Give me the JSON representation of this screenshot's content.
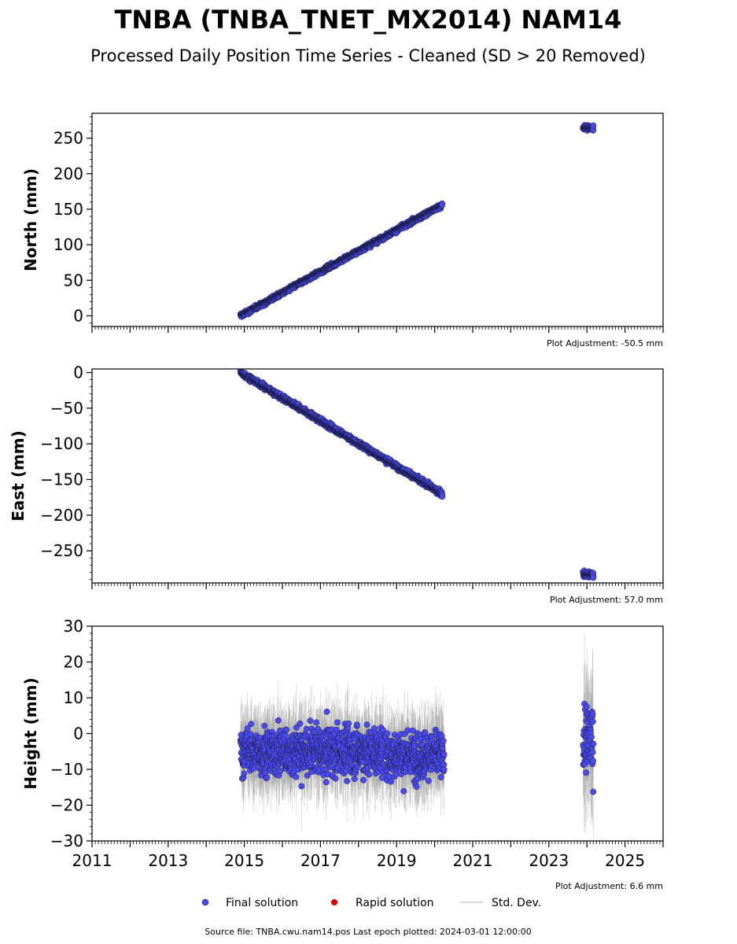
{
  "title": "TNBA (TNBA_TNET_MX2014) NAM14",
  "subtitle": "Processed Daily Position Time Series - Cleaned (SD > 20 Removed)",
  "footer": "Source file: TNBA.cwu.nam14.pos  Last epoch plotted: 2024-03-01 12:00:00",
  "legend": [
    {
      "label": "Final solution",
      "marker": "circle",
      "color": "#4a4af0"
    },
    {
      "label": "Rapid solution",
      "marker": "circle",
      "color": "#e00000"
    },
    {
      "label": "Std. Dev.",
      "marker": "line",
      "color": "#cccccc"
    }
  ],
  "colors": {
    "final": "#4a4af0",
    "final_edge": "#1a1a40",
    "rapid": "#e00000",
    "stddev": "#999999"
  },
  "chart_data": [
    {
      "type": "scatter",
      "ylabel": "North (mm)",
      "adjustment": "Plot Adjustment: -50.5 mm",
      "xlim": [
        2011.0,
        2026.0
      ],
      "ylim": [
        -15,
        285
      ],
      "yticks": [
        0,
        50,
        100,
        150,
        200,
        250
      ],
      "yminor": 10,
      "xtick_labels_visible": false,
      "segments": [
        {
          "series": "Final solution",
          "x": [
            2014.9,
            2020.2
          ],
          "y": [
            0,
            156
          ],
          "noise": 2.5,
          "sd": 5
        },
        {
          "series": "Final solution",
          "x": [
            2023.9,
            2024.17
          ],
          "y": [
            264,
            265
          ],
          "noise": 3,
          "sd": 4
        }
      ]
    },
    {
      "type": "scatter",
      "ylabel": "East (mm)",
      "adjustment": "Plot Adjustment: 57.0 mm",
      "xlim": [
        2011.0,
        2026.0
      ],
      "ylim": [
        -295,
        5
      ],
      "yticks": [
        0,
        -50,
        -100,
        -150,
        -200,
        -250
      ],
      "yminor": 10,
      "xtick_labels_visible": false,
      "segments": [
        {
          "series": "Final solution",
          "x": [
            2014.9,
            2020.2
          ],
          "y": [
            0,
            -170
          ],
          "noise": 3,
          "sd": 5
        },
        {
          "series": "Final solution",
          "x": [
            2023.9,
            2024.17
          ],
          "y": [
            -283,
            -284
          ],
          "noise": 4,
          "sd": 4
        }
      ]
    },
    {
      "type": "scatter",
      "ylabel": "Height (mm)",
      "adjustment": "Plot Adjustment: 6.6 mm",
      "xlim": [
        2011.0,
        2026.0
      ],
      "ylim": [
        -30,
        30
      ],
      "yticks": [
        -30,
        -20,
        -10,
        0,
        10,
        20,
        30
      ],
      "yminor": 2,
      "xtick_labels_visible": true,
      "xticks": [
        2011,
        2013,
        2015,
        2017,
        2019,
        2021,
        2023,
        2025
      ],
      "xtick_labels": [
        "2011",
        "2013",
        "2015",
        "2017",
        "2019",
        "2021",
        "2023",
        "2025"
      ],
      "segments": [
        {
          "series": "Final solution",
          "x": [
            2014.9,
            2018.65
          ],
          "y": [
            -5,
            -5
          ],
          "noise": 5.5,
          "sd": 9
        },
        {
          "series": "Final solution",
          "x": [
            2018.7,
            2020.25
          ],
          "y": [
            -6,
            -6
          ],
          "noise": 5.5,
          "sd": 9
        },
        {
          "series": "Final solution",
          "x": [
            2023.9,
            2024.17
          ],
          "y": [
            -2,
            -2
          ],
          "noise": 8,
          "sd": 14
        }
      ]
    }
  ]
}
